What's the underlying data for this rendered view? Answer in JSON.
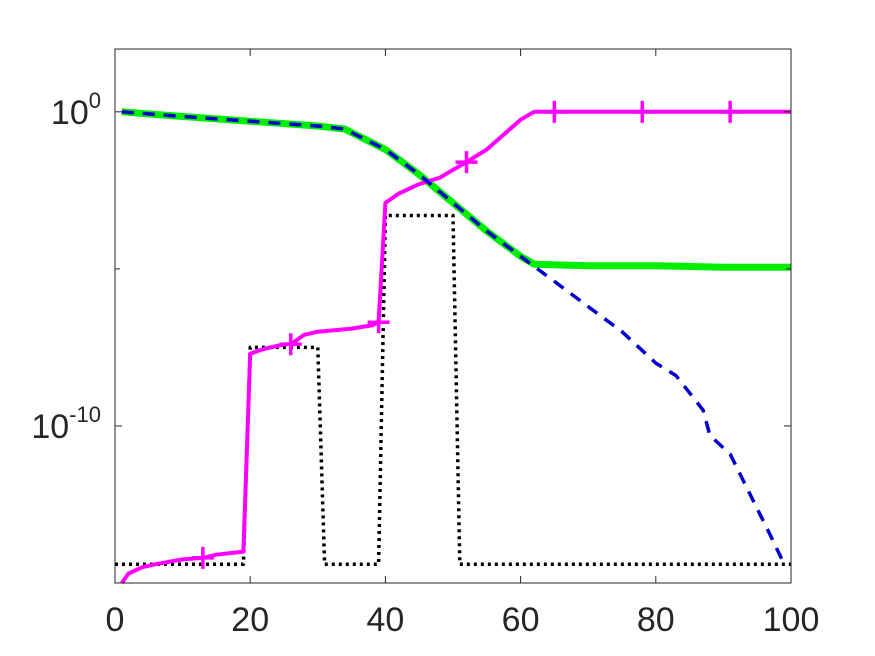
{
  "chart_data": {
    "type": "line",
    "title": "",
    "xlabel": "",
    "ylabel": "",
    "xlim": [
      0,
      100
    ],
    "ylim_log10": [
      -15,
      2
    ],
    "y_scale": "log",
    "grid": false,
    "box": true,
    "x_ticks": [
      {
        "value": 0,
        "label": "0"
      },
      {
        "value": 20,
        "label": "20"
      },
      {
        "value": 40,
        "label": "40"
      },
      {
        "value": 60,
        "label": "60"
      },
      {
        "value": 80,
        "label": "80"
      },
      {
        "value": 100,
        "label": "100"
      }
    ],
    "y_ticks": [
      {
        "log10": 0,
        "base": "10",
        "exp": "0"
      },
      {
        "log10": -10,
        "base": "10",
        "exp": "-10"
      }
    ],
    "y_minor_ticks_log10": [
      -5
    ],
    "series": [
      {
        "color": "#00ee00",
        "style": "solid",
        "points": [
          [
            1,
            0
          ],
          [
            10,
            -0.15
          ],
          [
            20,
            -0.3
          ],
          [
            30,
            -0.45
          ],
          [
            34,
            -0.55
          ],
          [
            40,
            -1.2
          ],
          [
            45,
            -2.0
          ],
          [
            50,
            -2.9
          ],
          [
            55,
            -3.8
          ],
          [
            60,
            -4.6
          ],
          [
            62,
            -4.85
          ],
          [
            70,
            -4.9
          ],
          [
            80,
            -4.9
          ],
          [
            90,
            -4.95
          ],
          [
            100,
            -4.95
          ]
        ]
      },
      {
        "color": "#0000cc",
        "style": "dashed",
        "points": [
          [
            1,
            0
          ],
          [
            10,
            -0.15
          ],
          [
            20,
            -0.3
          ],
          [
            30,
            -0.45
          ],
          [
            34,
            -0.55
          ],
          [
            40,
            -1.2
          ],
          [
            45,
            -2.0
          ],
          [
            50,
            -2.9
          ],
          [
            55,
            -3.8
          ],
          [
            60,
            -4.6
          ],
          [
            65,
            -5.4
          ],
          [
            70,
            -6.2
          ],
          [
            75,
            -7.0
          ],
          [
            80,
            -8.0
          ],
          [
            83,
            -8.4
          ],
          [
            87,
            -9.5
          ],
          [
            88,
            -10.3
          ],
          [
            91,
            -10.9
          ],
          [
            94,
            -12.2
          ],
          [
            97,
            -13.5
          ],
          [
            99,
            -14.4
          ]
        ]
      },
      {
        "color": "#000000",
        "style": "dotted",
        "points": [
          [
            0,
            -14.4
          ],
          [
            19,
            -14.4
          ],
          [
            20,
            -7.5
          ],
          [
            30,
            -7.5
          ],
          [
            31,
            -14.4
          ],
          [
            39,
            -14.4
          ],
          [
            40,
            -3.3
          ],
          [
            50,
            -3.3
          ],
          [
            51,
            -14.4
          ],
          [
            100,
            -14.4
          ]
        ]
      },
      {
        "color": "#ff00ff",
        "style": "solid",
        "marker": "+",
        "points": [
          [
            1,
            -15
          ],
          [
            2,
            -14.7
          ],
          [
            4,
            -14.5
          ],
          [
            6,
            -14.4
          ],
          [
            10,
            -14.25
          ],
          [
            13,
            -14.2
          ],
          [
            15,
            -14.1
          ],
          [
            19,
            -14.0
          ],
          [
            20,
            -7.7
          ],
          [
            22,
            -7.55
          ],
          [
            25,
            -7.4
          ],
          [
            26,
            -7.4
          ],
          [
            28,
            -7.1
          ],
          [
            30,
            -7.0
          ],
          [
            35,
            -6.9
          ],
          [
            38,
            -6.8
          ],
          [
            39,
            -6.7
          ],
          [
            40,
            -2.9
          ],
          [
            42,
            -2.6
          ],
          [
            45,
            -2.3
          ],
          [
            48,
            -2.1
          ],
          [
            50,
            -1.85
          ],
          [
            52,
            -1.6
          ],
          [
            55,
            -1.2
          ],
          [
            60,
            -0.25
          ],
          [
            62,
            0
          ],
          [
            100,
            0
          ]
        ],
        "marker_points": [
          [
            13,
            -14.2
          ],
          [
            26,
            -7.4
          ],
          [
            39,
            -6.7
          ],
          [
            52,
            -1.6
          ],
          [
            65,
            0
          ],
          [
            78,
            0
          ],
          [
            91,
            0
          ]
        ]
      }
    ]
  }
}
